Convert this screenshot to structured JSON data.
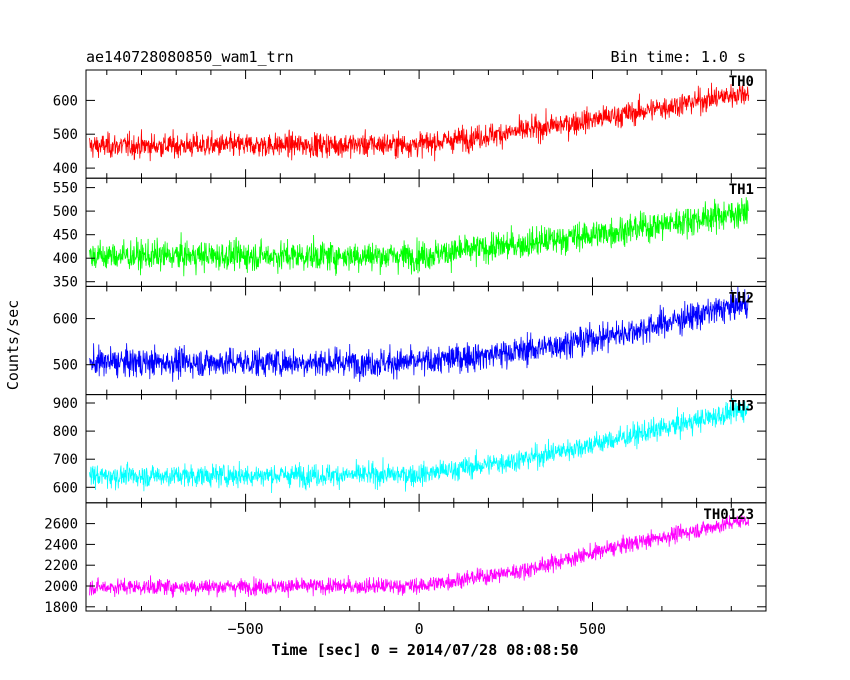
{
  "header": {
    "title": "ae140728080850_wam1_trn",
    "bin_time": "Bin time: 1.0 s"
  },
  "axes": {
    "ylabel": "Counts/sec",
    "xlabel": "Time [sec] 0 = 2014/07/28 08:08:50",
    "xlim": [
      -960,
      1000
    ],
    "x_ticks": [
      -500,
      0,
      500
    ],
    "x_tick_labels": [
      "−500",
      "0",
      "500"
    ]
  },
  "chart_data": {
    "type": "line",
    "x_start": -950,
    "x_end": 950,
    "x_step": 1,
    "panels": [
      {
        "name": "TH0",
        "color": "#ff0000",
        "ylim": [
          370,
          690
        ],
        "yticks": [
          400,
          500,
          600
        ],
        "trend": [
          [
            -950,
            465
          ],
          [
            0,
            470
          ],
          [
            300,
            510
          ],
          [
            600,
            560
          ],
          [
            950,
            625
          ]
        ],
        "noise_sd": 25
      },
      {
        "name": "TH1",
        "color": "#00ff00",
        "ylim": [
          340,
          570
        ],
        "yticks": [
          350,
          400,
          450,
          500,
          550
        ],
        "trend": [
          [
            -950,
            405
          ],
          [
            0,
            405
          ],
          [
            300,
            430
          ],
          [
            600,
            460
          ],
          [
            950,
            500
          ]
        ],
        "noise_sd": 22
      },
      {
        "name": "TH2",
        "color": "#0000ff",
        "ylim": [
          435,
          670
        ],
        "yticks": [
          500,
          600
        ],
        "trend": [
          [
            -950,
            505
          ],
          [
            0,
            505
          ],
          [
            300,
            530
          ],
          [
            600,
            570
          ],
          [
            950,
            635
          ]
        ],
        "noise_sd": 22
      },
      {
        "name": "TH3",
        "color": "#00ffff",
        "ylim": [
          545,
          930
        ],
        "yticks": [
          600,
          700,
          800,
          900
        ],
        "trend": [
          [
            -950,
            640
          ],
          [
            0,
            645
          ],
          [
            300,
            700
          ],
          [
            600,
            780
          ],
          [
            950,
            880
          ]
        ],
        "noise_sd": 28
      },
      {
        "name": "TH0123",
        "color": "#ff00ff",
        "ylim": [
          1760,
          2800
        ],
        "yticks": [
          1800,
          2000,
          2200,
          2400,
          2600
        ],
        "trend": [
          [
            -950,
            1990
          ],
          [
            0,
            2000
          ],
          [
            300,
            2150
          ],
          [
            600,
            2400
          ],
          [
            950,
            2640
          ]
        ],
        "noise_sd": 55
      }
    ]
  }
}
